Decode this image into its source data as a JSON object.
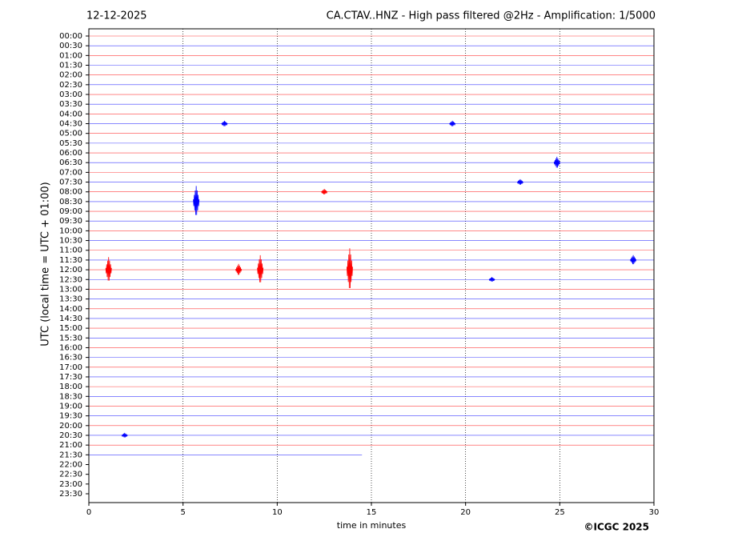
{
  "chart_data": {
    "type": "helicorder",
    "title": "CA.CTAV..HNZ - High pass filtered @2Hz - Amplification: 1/5000",
    "date": "12-12-2025",
    "xlabel": "time in minutes",
    "ylabel": "UTC (local time = UTC + 01:00)",
    "credit": "©ICGC 2025",
    "categories": [
      "00:00",
      "00:30",
      "01:00",
      "01:30",
      "02:00",
      "02:30",
      "03:00",
      "03:30",
      "04:00",
      "04:30",
      "05:00",
      "05:30",
      "06:00",
      "06:30",
      "07:00",
      "07:30",
      "08:00",
      "08:30",
      "09:00",
      "09:30",
      "10:00",
      "10:30",
      "11:00",
      "11:30",
      "12:00",
      "12:30",
      "13:00",
      "13:30",
      "14:00",
      "14:30",
      "15:00",
      "15:30",
      "16:00",
      "16:30",
      "17:00",
      "17:30",
      "18:00",
      "18:30",
      "19:00",
      "19:30",
      "20:00",
      "20:30",
      "21:00",
      "21:30",
      "22:00",
      "22:30",
      "23:00",
      "23:30"
    ],
    "trace_end": [
      30,
      30,
      30,
      30,
      30,
      30,
      30,
      30,
      30,
      30,
      30,
      30,
      30,
      30,
      30,
      30,
      30,
      30,
      30,
      30,
      30,
      30,
      30,
      30,
      30,
      30,
      30,
      30,
      30,
      30,
      30,
      30,
      30,
      30,
      30,
      30,
      30,
      30,
      30,
      30,
      30,
      30,
      30,
      14.5,
      null,
      null,
      null,
      null
    ],
    "trace_colors": [
      "#ff0000",
      "#0000ff"
    ],
    "events": [
      {
        "row": 17,
        "x": 5.7,
        "amp": 1.6
      },
      {
        "row": 24,
        "x": 13.85,
        "amp": 2.2
      },
      {
        "row": 24,
        "x": 1.05,
        "amp": 1.3
      },
      {
        "row": 24,
        "x": 9.1,
        "amp": 1.5
      },
      {
        "row": 24,
        "x": 7.95,
        "amp": 0.6
      },
      {
        "row": 13,
        "x": 24.85,
        "amp": 0.6
      },
      {
        "row": 9,
        "x": 7.2,
        "amp": 0.3
      },
      {
        "row": 9,
        "x": 19.3,
        "amp": 0.3
      },
      {
        "row": 23,
        "x": 28.9,
        "amp": 0.5
      },
      {
        "row": 16,
        "x": 12.5,
        "amp": 0.3
      },
      {
        "row": 15,
        "x": 22.9,
        "amp": 0.3
      },
      {
        "row": 25,
        "x": 21.4,
        "amp": 0.25
      },
      {
        "row": 41,
        "x": 1.9,
        "amp": 0.25
      }
    ],
    "xlim": [
      0,
      30
    ],
    "xticks": [
      0,
      5,
      10,
      15,
      20,
      25,
      30
    ],
    "grid": true
  }
}
